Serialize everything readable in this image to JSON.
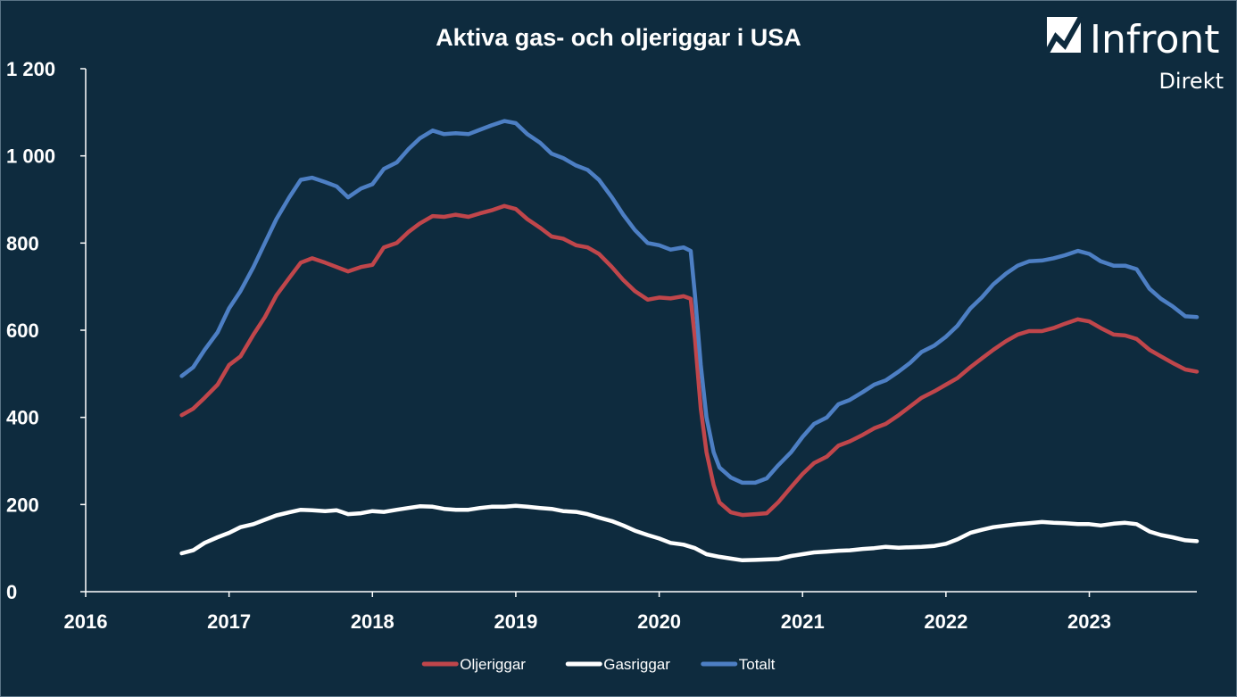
{
  "logo": {
    "name": "Infront",
    "subtitle": "Direkt"
  },
  "chart_data": {
    "type": "line",
    "title": "Aktiva gas- och oljeriggar i USA",
    "xlabel": "",
    "ylabel": "",
    "xlim": [
      2016,
      2023.75
    ],
    "ylim": [
      0,
      1200
    ],
    "x_ticks": [
      2016,
      2017,
      2018,
      2019,
      2020,
      2021,
      2022,
      2023
    ],
    "x_tick_labels": [
      "2016",
      "2017",
      "2018",
      "2019",
      "2020",
      "2021",
      "2022",
      "2023"
    ],
    "y_ticks": [
      0,
      200,
      400,
      600,
      800,
      1000,
      1200
    ],
    "y_tick_labels": [
      "0",
      "200",
      "400",
      "600",
      "800",
      "1 000",
      "1 200"
    ],
    "grid": false,
    "legend_position": "bottom",
    "series": [
      {
        "name": "Oljeriggar",
        "color": "#c0464b",
        "points": [
          [
            2016.67,
            405
          ],
          [
            2016.75,
            420
          ],
          [
            2016.83,
            445
          ],
          [
            2016.92,
            475
          ],
          [
            2017.0,
            520
          ],
          [
            2017.08,
            540
          ],
          [
            2017.17,
            590
          ],
          [
            2017.25,
            630
          ],
          [
            2017.33,
            680
          ],
          [
            2017.42,
            720
          ],
          [
            2017.5,
            755
          ],
          [
            2017.58,
            765
          ],
          [
            2017.67,
            755
          ],
          [
            2017.75,
            745
          ],
          [
            2017.83,
            735
          ],
          [
            2017.92,
            745
          ],
          [
            2018.0,
            750
          ],
          [
            2018.08,
            790
          ],
          [
            2018.17,
            800
          ],
          [
            2018.25,
            825
          ],
          [
            2018.33,
            845
          ],
          [
            2018.42,
            862
          ],
          [
            2018.5,
            860
          ],
          [
            2018.58,
            865
          ],
          [
            2018.67,
            860
          ],
          [
            2018.75,
            868
          ],
          [
            2018.83,
            875
          ],
          [
            2018.92,
            885
          ],
          [
            2019.0,
            878
          ],
          [
            2019.08,
            855
          ],
          [
            2019.17,
            835
          ],
          [
            2019.25,
            815
          ],
          [
            2019.33,
            810
          ],
          [
            2019.42,
            795
          ],
          [
            2019.5,
            790
          ],
          [
            2019.58,
            775
          ],
          [
            2019.67,
            745
          ],
          [
            2019.75,
            715
          ],
          [
            2019.83,
            690
          ],
          [
            2019.92,
            670
          ],
          [
            2020.0,
            675
          ],
          [
            2020.08,
            673
          ],
          [
            2020.17,
            678
          ],
          [
            2020.22,
            672
          ],
          [
            2020.25,
            580
          ],
          [
            2020.29,
            420
          ],
          [
            2020.33,
            320
          ],
          [
            2020.38,
            245
          ],
          [
            2020.42,
            205
          ],
          [
            2020.5,
            182
          ],
          [
            2020.58,
            176
          ],
          [
            2020.67,
            178
          ],
          [
            2020.75,
            180
          ],
          [
            2020.83,
            205
          ],
          [
            2020.92,
            240
          ],
          [
            2021.0,
            270
          ],
          [
            2021.08,
            295
          ],
          [
            2021.17,
            310
          ],
          [
            2021.25,
            335
          ],
          [
            2021.33,
            345
          ],
          [
            2021.42,
            360
          ],
          [
            2021.5,
            375
          ],
          [
            2021.58,
            385
          ],
          [
            2021.67,
            405
          ],
          [
            2021.75,
            425
          ],
          [
            2021.83,
            445
          ],
          [
            2021.92,
            460
          ],
          [
            2022.0,
            475
          ],
          [
            2022.08,
            490
          ],
          [
            2022.17,
            515
          ],
          [
            2022.25,
            535
          ],
          [
            2022.33,
            555
          ],
          [
            2022.42,
            575
          ],
          [
            2022.5,
            590
          ],
          [
            2022.58,
            598
          ],
          [
            2022.67,
            598
          ],
          [
            2022.75,
            605
          ],
          [
            2022.83,
            615
          ],
          [
            2022.92,
            625
          ],
          [
            2023.0,
            620
          ],
          [
            2023.08,
            605
          ],
          [
            2023.17,
            590
          ],
          [
            2023.25,
            588
          ],
          [
            2023.33,
            580
          ],
          [
            2023.42,
            555
          ],
          [
            2023.5,
            540
          ],
          [
            2023.58,
            525
          ],
          [
            2023.67,
            510
          ],
          [
            2023.75,
            505
          ]
        ]
      },
      {
        "name": "Gasriggar",
        "color": "#ffffff",
        "points": [
          [
            2016.67,
            88
          ],
          [
            2016.75,
            95
          ],
          [
            2016.83,
            112
          ],
          [
            2016.92,
            125
          ],
          [
            2017.0,
            135
          ],
          [
            2017.08,
            148
          ],
          [
            2017.17,
            155
          ],
          [
            2017.25,
            165
          ],
          [
            2017.33,
            175
          ],
          [
            2017.42,
            182
          ],
          [
            2017.5,
            188
          ],
          [
            2017.58,
            187
          ],
          [
            2017.67,
            185
          ],
          [
            2017.75,
            187
          ],
          [
            2017.83,
            178
          ],
          [
            2017.92,
            180
          ],
          [
            2018.0,
            185
          ],
          [
            2018.08,
            183
          ],
          [
            2018.17,
            188
          ],
          [
            2018.25,
            192
          ],
          [
            2018.33,
            196
          ],
          [
            2018.42,
            195
          ],
          [
            2018.5,
            190
          ],
          [
            2018.58,
            188
          ],
          [
            2018.67,
            188
          ],
          [
            2018.75,
            192
          ],
          [
            2018.83,
            195
          ],
          [
            2018.92,
            195
          ],
          [
            2019.0,
            197
          ],
          [
            2019.08,
            195
          ],
          [
            2019.17,
            192
          ],
          [
            2019.25,
            190
          ],
          [
            2019.33,
            185
          ],
          [
            2019.42,
            183
          ],
          [
            2019.5,
            178
          ],
          [
            2019.58,
            170
          ],
          [
            2019.67,
            162
          ],
          [
            2019.75,
            152
          ],
          [
            2019.83,
            140
          ],
          [
            2019.92,
            130
          ],
          [
            2020.0,
            122
          ],
          [
            2020.08,
            112
          ],
          [
            2020.17,
            108
          ],
          [
            2020.25,
            100
          ],
          [
            2020.33,
            86
          ],
          [
            2020.42,
            80
          ],
          [
            2020.5,
            76
          ],
          [
            2020.58,
            72
          ],
          [
            2020.67,
            73
          ],
          [
            2020.75,
            74
          ],
          [
            2020.83,
            75
          ],
          [
            2020.92,
            82
          ],
          [
            2021.0,
            86
          ],
          [
            2021.08,
            90
          ],
          [
            2021.17,
            92
          ],
          [
            2021.25,
            94
          ],
          [
            2021.33,
            95
          ],
          [
            2021.42,
            98
          ],
          [
            2021.5,
            100
          ],
          [
            2021.58,
            103
          ],
          [
            2021.67,
            101
          ],
          [
            2021.75,
            102
          ],
          [
            2021.83,
            103
          ],
          [
            2021.92,
            105
          ],
          [
            2022.0,
            110
          ],
          [
            2022.08,
            120
          ],
          [
            2022.17,
            135
          ],
          [
            2022.25,
            142
          ],
          [
            2022.33,
            148
          ],
          [
            2022.42,
            152
          ],
          [
            2022.5,
            155
          ],
          [
            2022.58,
            157
          ],
          [
            2022.67,
            160
          ],
          [
            2022.75,
            158
          ],
          [
            2022.83,
            157
          ],
          [
            2022.92,
            155
          ],
          [
            2023.0,
            155
          ],
          [
            2023.08,
            152
          ],
          [
            2023.17,
            156
          ],
          [
            2023.25,
            158
          ],
          [
            2023.33,
            155
          ],
          [
            2023.42,
            138
          ],
          [
            2023.5,
            130
          ],
          [
            2023.58,
            125
          ],
          [
            2023.67,
            118
          ],
          [
            2023.75,
            116
          ]
        ]
      },
      {
        "name": "Totalt",
        "color": "#4d7fc4",
        "points": [
          [
            2016.67,
            495
          ],
          [
            2016.75,
            515
          ],
          [
            2016.83,
            555
          ],
          [
            2016.92,
            595
          ],
          [
            2017.0,
            650
          ],
          [
            2017.08,
            690
          ],
          [
            2017.17,
            745
          ],
          [
            2017.25,
            800
          ],
          [
            2017.33,
            855
          ],
          [
            2017.42,
            905
          ],
          [
            2017.5,
            945
          ],
          [
            2017.58,
            950
          ],
          [
            2017.67,
            940
          ],
          [
            2017.75,
            930
          ],
          [
            2017.83,
            905
          ],
          [
            2017.92,
            925
          ],
          [
            2018.0,
            935
          ],
          [
            2018.08,
            970
          ],
          [
            2018.17,
            985
          ],
          [
            2018.25,
            1015
          ],
          [
            2018.33,
            1040
          ],
          [
            2018.42,
            1058
          ],
          [
            2018.5,
            1050
          ],
          [
            2018.58,
            1052
          ],
          [
            2018.67,
            1050
          ],
          [
            2018.75,
            1060
          ],
          [
            2018.83,
            1070
          ],
          [
            2018.92,
            1080
          ],
          [
            2019.0,
            1075
          ],
          [
            2019.08,
            1050
          ],
          [
            2019.17,
            1030
          ],
          [
            2019.25,
            1005
          ],
          [
            2019.33,
            995
          ],
          [
            2019.42,
            978
          ],
          [
            2019.5,
            968
          ],
          [
            2019.58,
            945
          ],
          [
            2019.67,
            905
          ],
          [
            2019.75,
            865
          ],
          [
            2019.83,
            830
          ],
          [
            2019.92,
            800
          ],
          [
            2020.0,
            795
          ],
          [
            2020.08,
            785
          ],
          [
            2020.17,
            790
          ],
          [
            2020.22,
            782
          ],
          [
            2020.25,
            680
          ],
          [
            2020.29,
            520
          ],
          [
            2020.33,
            400
          ],
          [
            2020.38,
            320
          ],
          [
            2020.42,
            285
          ],
          [
            2020.5,
            262
          ],
          [
            2020.58,
            250
          ],
          [
            2020.67,
            250
          ],
          [
            2020.75,
            260
          ],
          [
            2020.83,
            290
          ],
          [
            2020.92,
            320
          ],
          [
            2021.0,
            355
          ],
          [
            2021.08,
            385
          ],
          [
            2021.17,
            400
          ],
          [
            2021.25,
            430
          ],
          [
            2021.33,
            440
          ],
          [
            2021.42,
            458
          ],
          [
            2021.5,
            475
          ],
          [
            2021.58,
            485
          ],
          [
            2021.67,
            505
          ],
          [
            2021.75,
            525
          ],
          [
            2021.83,
            550
          ],
          [
            2021.92,
            565
          ],
          [
            2022.0,
            585
          ],
          [
            2022.08,
            610
          ],
          [
            2022.17,
            650
          ],
          [
            2022.25,
            675
          ],
          [
            2022.33,
            705
          ],
          [
            2022.42,
            730
          ],
          [
            2022.5,
            748
          ],
          [
            2022.58,
            758
          ],
          [
            2022.67,
            760
          ],
          [
            2022.75,
            765
          ],
          [
            2022.83,
            772
          ],
          [
            2022.92,
            782
          ],
          [
            2023.0,
            775
          ],
          [
            2023.08,
            758
          ],
          [
            2023.17,
            748
          ],
          [
            2023.25,
            748
          ],
          [
            2023.33,
            740
          ],
          [
            2023.42,
            695
          ],
          [
            2023.5,
            672
          ],
          [
            2023.58,
            655
          ],
          [
            2023.67,
            632
          ],
          [
            2023.75,
            630
          ]
        ]
      }
    ]
  }
}
